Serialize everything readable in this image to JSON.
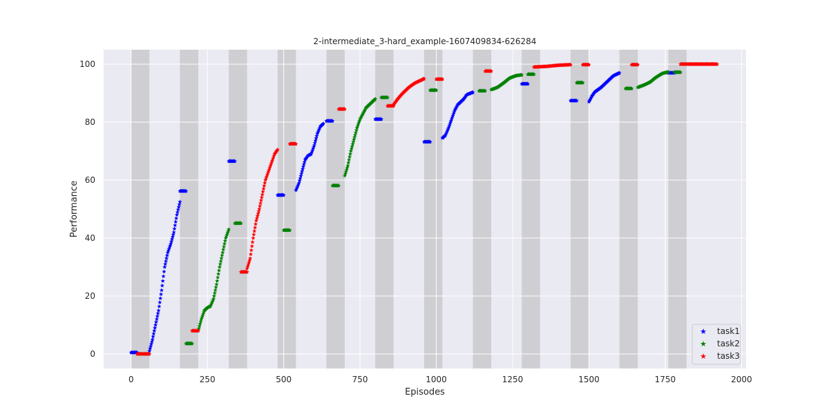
{
  "chart_data": {
    "type": "scatter",
    "title": "2-intermediate_3-hard_example-1607409834-626284",
    "xlabel": "Episodes",
    "ylabel": "Performance",
    "xlim": [
      -90,
      2015
    ],
    "ylim": [
      -5,
      105
    ],
    "xticks": [
      0,
      250,
      500,
      750,
      1000,
      1250,
      1500,
      1750,
      2000
    ],
    "yticks": [
      0,
      20,
      40,
      60,
      80,
      100
    ],
    "grid": true,
    "background": "#eaeaf2",
    "legend_position": "lower-right",
    "shaded_intervals": [
      [
        0,
        60
      ],
      [
        160,
        220
      ],
      [
        320,
        380
      ],
      [
        480,
        540
      ],
      [
        640,
        700
      ],
      [
        800,
        860
      ],
      [
        960,
        1020
      ],
      [
        1120,
        1180
      ],
      [
        1280,
        1340
      ],
      [
        1440,
        1500
      ],
      [
        1600,
        1660
      ],
      [
        1760,
        1820
      ]
    ],
    "series": [
      {
        "name": "task1",
        "color": "#0000ff",
        "marker": "star",
        "flat": [
          [
            0,
            20,
            0.5
          ],
          [
            160,
            180,
            56.2
          ],
          [
            320,
            340,
            66.5
          ],
          [
            480,
            500,
            54.8
          ],
          [
            640,
            660,
            80.4
          ],
          [
            800,
            820,
            81.0
          ],
          [
            960,
            980,
            73.2
          ],
          [
            1280,
            1300,
            93.2
          ],
          [
            1440,
            1460,
            87.4
          ],
          [
            1760,
            1780,
            97.0
          ]
        ],
        "curves": [
          [
            [
              60,
              1
            ],
            [
              70,
              5
            ],
            [
              80,
              10
            ],
            [
              90,
              15
            ],
            [
              100,
              22
            ],
            [
              110,
              30
            ],
            [
              120,
              35
            ],
            [
              130,
              38
            ],
            [
              140,
              42
            ],
            [
              150,
              48
            ],
            [
              160,
              52.5
            ]
          ],
          [
            [
              540,
              56.5
            ],
            [
              550,
              59
            ],
            [
              560,
              63
            ],
            [
              570,
              67
            ],
            [
              580,
              68.5
            ],
            [
              590,
              69
            ],
            [
              600,
              72
            ],
            [
              610,
              76
            ],
            [
              620,
              78.5
            ],
            [
              630,
              79.5
            ]
          ],
          [
            [
              1020,
              74.5
            ],
            [
              1030,
              75.5
            ],
            [
              1040,
              78
            ],
            [
              1050,
              81
            ],
            [
              1060,
              84
            ],
            [
              1070,
              86
            ],
            [
              1080,
              87
            ],
            [
              1090,
              88
            ],
            [
              1100,
              89.5
            ],
            [
              1120,
              90.3
            ]
          ],
          [
            [
              1500,
              87
            ],
            [
              1510,
              89
            ],
            [
              1520,
              90.5
            ],
            [
              1540,
              92
            ],
            [
              1560,
              94
            ],
            [
              1580,
              96
            ],
            [
              1600,
              97
            ]
          ]
        ]
      },
      {
        "name": "task2",
        "color": "#008000",
        "marker": "star",
        "flat": [
          [
            180,
            200,
            3.6
          ],
          [
            340,
            360,
            45.1
          ],
          [
            500,
            520,
            42.7
          ],
          [
            660,
            680,
            58.1
          ],
          [
            820,
            840,
            88.5
          ],
          [
            980,
            1000,
            91.0
          ],
          [
            1140,
            1160,
            90.8
          ],
          [
            1300,
            1320,
            96.5
          ],
          [
            1460,
            1480,
            93.6
          ],
          [
            1620,
            1640,
            91.6
          ],
          [
            1780,
            1800,
            97.2
          ]
        ],
        "curves": [
          [
            [
              220,
              8
            ],
            [
              230,
              12
            ],
            [
              240,
              15
            ],
            [
              250,
              16
            ],
            [
              260,
              16.5
            ],
            [
              270,
              19
            ],
            [
              280,
              24
            ],
            [
              290,
              30
            ],
            [
              300,
              35
            ],
            [
              310,
              40
            ],
            [
              320,
              43
            ]
          ],
          [
            [
              700,
              61.5
            ],
            [
              710,
              65
            ],
            [
              720,
              70
            ],
            [
              730,
              74
            ],
            [
              740,
              78
            ],
            [
              750,
              81
            ],
            [
              760,
              83
            ],
            [
              770,
              85
            ],
            [
              780,
              86
            ],
            [
              790,
              87
            ],
            [
              800,
              88
            ]
          ],
          [
            [
              1180,
              91.2
            ],
            [
              1200,
              92
            ],
            [
              1220,
              93.5
            ],
            [
              1240,
              95.2
            ],
            [
              1260,
              96
            ],
            [
              1280,
              96.3
            ]
          ],
          [
            [
              1660,
              92
            ],
            [
              1680,
              92.8
            ],
            [
              1700,
              93.8
            ],
            [
              1720,
              95.5
            ],
            [
              1740,
              96.8
            ],
            [
              1760,
              97.3
            ]
          ]
        ]
      },
      {
        "name": "task3",
        "color": "#ff0000",
        "marker": "star",
        "flat": [
          [
            20,
            60,
            0
          ],
          [
            200,
            220,
            8
          ],
          [
            360,
            380,
            28.3
          ],
          [
            520,
            540,
            72.5
          ],
          [
            680,
            700,
            84.5
          ],
          [
            840,
            860,
            85.6
          ],
          [
            1000,
            1020,
            94.8
          ],
          [
            1160,
            1180,
            97.6
          ],
          [
            1480,
            1500,
            99.8
          ],
          [
            1640,
            1660,
            99.8
          ],
          [
            1800,
            1920,
            100
          ]
        ],
        "curves": [
          [
            [
              380,
              29.5
            ],
            [
              390,
              33
            ],
            [
              400,
              40
            ],
            [
              410,
              46
            ],
            [
              420,
              50
            ],
            [
              430,
              55
            ],
            [
              440,
              60
            ],
            [
              450,
              63
            ],
            [
              460,
              66
            ],
            [
              470,
              69
            ],
            [
              480,
              70.5
            ]
          ],
          [
            [
              860,
              86
            ],
            [
              870,
              87.5
            ],
            [
              880,
              88.8
            ],
            [
              890,
              90
            ],
            [
              900,
              91
            ],
            [
              910,
              92
            ],
            [
              920,
              92.8
            ],
            [
              930,
              93.5
            ],
            [
              940,
              94
            ],
            [
              950,
              94.5
            ],
            [
              960,
              95
            ]
          ],
          [
            [
              1320,
              99
            ],
            [
              1340,
              99.1
            ],
            [
              1360,
              99.2
            ],
            [
              1380,
              99.4
            ],
            [
              1400,
              99.6
            ],
            [
              1420,
              99.7
            ],
            [
              1440,
              99.8
            ]
          ]
        ]
      }
    ]
  }
}
